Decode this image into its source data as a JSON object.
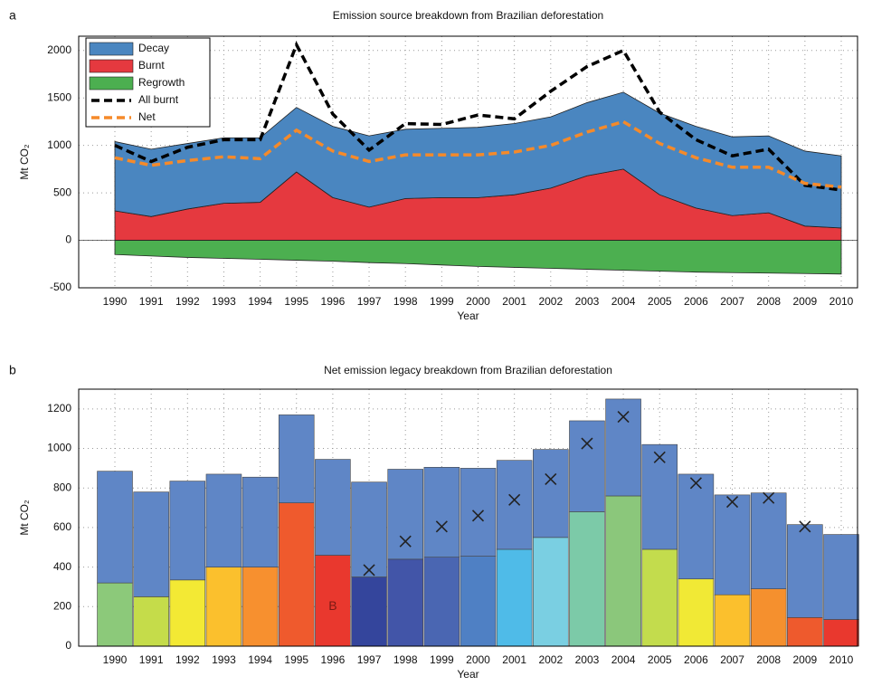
{
  "chart_data": [
    {
      "type": "stacked_area",
      "panel": "a",
      "title": "Emission source breakdown from Brazilian deforestation",
      "xlabel": "Year",
      "ylabel": "Mt CO₂",
      "categories": [
        "1990",
        "1991",
        "1992",
        "1993",
        "1994",
        "1995",
        "1996",
        "1997",
        "1998",
        "1999",
        "2000",
        "2001",
        "2002",
        "2003",
        "2004",
        "2005",
        "2006",
        "2007",
        "2008",
        "2009",
        "2010"
      ],
      "ylim": [
        -500,
        2150
      ],
      "yticks": [
        -500,
        0,
        500,
        1000,
        1500,
        2000
      ],
      "grid": true,
      "series": [
        {
          "name": "Decay",
          "kind": "area",
          "color": "#4a86c0",
          "values": [
            730,
            710,
            690,
            690,
            680,
            680,
            750,
            750,
            730,
            730,
            740,
            750,
            750,
            770,
            810,
            860,
            860,
            830,
            810,
            790,
            760
          ]
        },
        {
          "name": "Burnt",
          "kind": "area",
          "color": "#e5393f",
          "values": [
            310,
            250,
            330,
            390,
            400,
            720,
            450,
            350,
            440,
            450,
            450,
            480,
            550,
            680,
            750,
            480,
            340,
            260,
            290,
            150,
            130
          ]
        },
        {
          "name": "Regrowth",
          "kind": "area",
          "color": "#4caf50",
          "values": [
            -150,
            -165,
            -180,
            -190,
            -200,
            -210,
            -220,
            -235,
            -245,
            -260,
            -275,
            -285,
            -295,
            -305,
            -315,
            -325,
            -335,
            -340,
            -345,
            -350,
            -355
          ]
        },
        {
          "name": "All burnt",
          "kind": "line",
          "color": "#000000",
          "values": [
            1000,
            830,
            980,
            1060,
            1060,
            2060,
            1330,
            950,
            1230,
            1220,
            1320,
            1280,
            1570,
            1830,
            2000,
            1350,
            1060,
            890,
            960,
            580,
            530
          ]
        },
        {
          "name": "Net",
          "kind": "line",
          "color": "#f58a2a",
          "values": [
            870,
            790,
            840,
            880,
            860,
            1160,
            940,
            830,
            900,
            900,
            900,
            930,
            1000,
            1140,
            1250,
            1020,
            870,
            770,
            770,
            600,
            560
          ]
        }
      ]
    },
    {
      "type": "stacked_bar",
      "panel": "b",
      "title": "Net emission legacy breakdown from Brazilian deforestation",
      "xlabel": "Year",
      "ylabel": "Mt CO₂",
      "categories": [
        "1990",
        "1991",
        "1992",
        "1993",
        "1994",
        "1995",
        "1996",
        "1997",
        "1998",
        "1999",
        "2000",
        "2001",
        "2002",
        "2003",
        "2004",
        "2005",
        "2006",
        "2007",
        "2008",
        "2009",
        "2010"
      ],
      "ylim": [
        0,
        1300
      ],
      "yticks": [
        0,
        200,
        400,
        600,
        800,
        1000,
        1200
      ],
      "grid": true,
      "series": [
        {
          "colors": [
            "#8cc97a",
            "#c5dc4a",
            "#f3e934",
            "#fbc02d",
            "#f7902f",
            "#ef5a2d",
            "#e9382e",
            "#34459c",
            "#4255a8",
            "#4a66b2",
            "#4f80c4",
            "#4fbbe8",
            "#7acfe2",
            "#7ccaa8",
            "#8bc77b",
            "#c3dc4d",
            "#f1e935",
            "#fbc02d",
            "#f5902e",
            "#ee5a2d",
            "#e9382e"
          ],
          "values": [
            320,
            250,
            335,
            400,
            400,
            725,
            460,
            350,
            440,
            450,
            455,
            490,
            550,
            680,
            760,
            490,
            340,
            260,
            290,
            145,
            135
          ]
        },
        {
          "color": "#5f86c6",
          "values": [
            565,
            530,
            500,
            470,
            455,
            445,
            485,
            480,
            455,
            455,
            445,
            450,
            445,
            460,
            490,
            530,
            530,
            505,
            485,
            470,
            430
          ]
        }
      ],
      "markers": [
        null,
        null,
        null,
        null,
        null,
        null,
        null,
        385,
        530,
        605,
        660,
        740,
        845,
        1025,
        1160,
        955,
        825,
        730,
        750,
        605,
        null
      ],
      "annotation": "B"
    }
  ]
}
